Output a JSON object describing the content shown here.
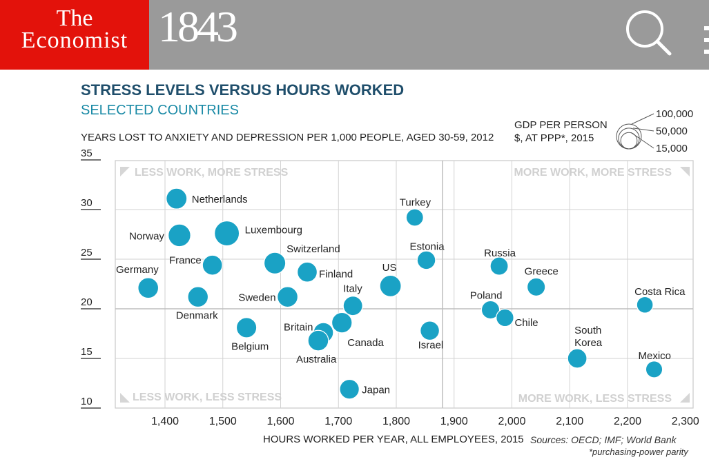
{
  "header": {
    "logo_line1": "The",
    "logo_line2": "Economist",
    "brand": "1843",
    "search_icon": "search-icon",
    "menu_icon": "menu-icon"
  },
  "chart_meta": {
    "title": "STRESS LEVELS VERSUS HOURS WORKED",
    "subtitle": "SELECTED COUNTRIES",
    "y_title": "YEARS LOST TO ANXIETY AND DEPRESSION PER 1,000 PEOPLE, AGED 30-59, 2012",
    "legend_title_line1": "GDP PER PERSON",
    "legend_title_line2": "$, AT PPP*, 2015",
    "sources": "Sources: OECD; IMF; World Bank",
    "footnote": "*purchasing-power parity"
  },
  "chart_data": {
    "type": "scatter",
    "title": "STRESS LEVELS VERSUS HOURS WORKED",
    "subtitle": "SELECTED COUNTRIES",
    "xlabel": "HOURS WORKED PER YEAR, ALL EMPLOYEES, 2015",
    "ylabel": "YEARS LOST TO ANXIETY AND DEPRESSION PER 1,000 PEOPLE, AGED 30-59, 2012",
    "xlim": [
      1300,
      2300
    ],
    "ylim": [
      10,
      35
    ],
    "x_ticks": [
      1400,
      1500,
      1600,
      1700,
      1800,
      1900,
      2000,
      2100,
      2200,
      2300
    ],
    "x_tick_labels": [
      "1,400",
      "1,500",
      "1,600",
      "1,700",
      "1,800",
      "1,900",
      "2,000",
      "2,100",
      "2,200",
      "2,300"
    ],
    "y_ticks": [
      10,
      15,
      20,
      25,
      30,
      35
    ],
    "quadrant_dividers": {
      "x": 1880,
      "y": 20
    },
    "quadrant_labels": {
      "top_left": "LESS WORK, MORE STRESS",
      "top_right": "MORE WORK, MORE STRESS",
      "bottom_left": "LESS WORK, LESS STRESS",
      "bottom_right": "MORE WORK, LESS STRESS"
    },
    "size_legend": [
      {
        "label": "100,000",
        "value": 100000
      },
      {
        "label": "50,000",
        "value": 50000
      },
      {
        "label": "15,000",
        "value": 15000
      }
    ],
    "bubble_color": "#1aa2c5",
    "points": [
      {
        "name": "Netherlands",
        "x": 1420,
        "y": 31.1,
        "gdp": 49000
      },
      {
        "name": "Norway",
        "x": 1425,
        "y": 27.4,
        "gdp": 68000
      },
      {
        "name": "Luxembourg",
        "x": 1507,
        "y": 27.6,
        "gdp": 100000
      },
      {
        "name": "Germany",
        "x": 1371,
        "y": 22.1,
        "gdp": 47000
      },
      {
        "name": "France",
        "x": 1482,
        "y": 24.4,
        "gdp": 41000
      },
      {
        "name": "Denmark",
        "x": 1457,
        "y": 21.2,
        "gdp": 46000
      },
      {
        "name": "Switzerland",
        "x": 1590,
        "y": 24.6,
        "gdp": 58000
      },
      {
        "name": "Sweden",
        "x": 1612,
        "y": 21.2,
        "gdp": 47000
      },
      {
        "name": "Finland",
        "x": 1646,
        "y": 23.7,
        "gdp": 41000
      },
      {
        "name": "Belgium",
        "x": 1541,
        "y": 18.1,
        "gdp": 44000
      },
      {
        "name": "Britain",
        "x": 1674,
        "y": 17.6,
        "gdp": 41000
      },
      {
        "name": "Australia",
        "x": 1665,
        "y": 16.8,
        "gdp": 47000
      },
      {
        "name": "Canada",
        "x": 1706,
        "y": 18.6,
        "gdp": 45000
      },
      {
        "name": "Italy",
        "x": 1725,
        "y": 20.3,
        "gdp": 36000
      },
      {
        "name": "US",
        "x": 1790,
        "y": 22.3,
        "gdp": 56000
      },
      {
        "name": "Japan",
        "x": 1719,
        "y": 11.9,
        "gdp": 38000
      },
      {
        "name": "Turkey",
        "x": 1832,
        "y": 29.2,
        "gdp": 20000
      },
      {
        "name": "Estonia",
        "x": 1852,
        "y": 24.9,
        "gdp": 28000
      },
      {
        "name": "Israel",
        "x": 1858,
        "y": 17.8,
        "gdp": 34000
      },
      {
        "name": "Russia",
        "x": 1978,
        "y": 24.3,
        "gdp": 25000
      },
      {
        "name": "Poland",
        "x": 1963,
        "y": 19.9,
        "gdp": 26000
      },
      {
        "name": "Chile",
        "x": 1988,
        "y": 19.1,
        "gdp": 22000
      },
      {
        "name": "Greece",
        "x": 2042,
        "y": 22.2,
        "gdp": 26000
      },
      {
        "name": "South Korea",
        "x": 2113,
        "y": 15,
        "gdp": 35000
      },
      {
        "name": "Costa Rica",
        "x": 2230,
        "y": 20.4,
        "gdp": 15000
      },
      {
        "name": "Mexico",
        "x": 2246,
        "y": 13.9,
        "gdp": 17000
      }
    ]
  }
}
